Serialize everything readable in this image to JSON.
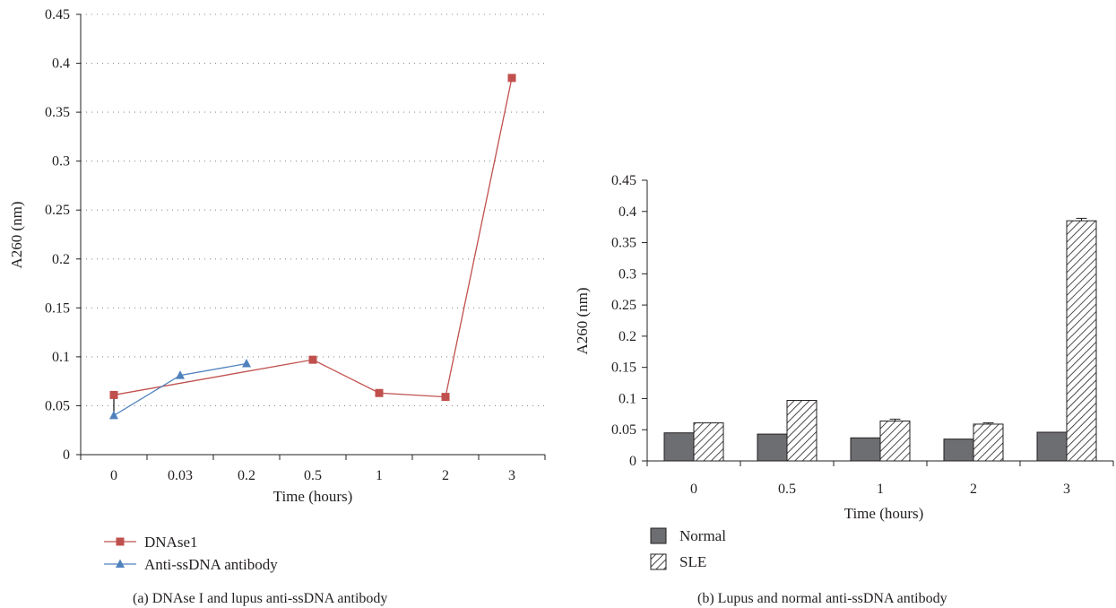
{
  "chart_data": [
    {
      "type": "line",
      "panel": "a",
      "caption": "(a)  DNAse I and lupus anti-ssDNA antibody",
      "title": "",
      "xlabel": "Time (hours)",
      "ylabel": "A260 (nm)",
      "ylim": [
        0,
        0.45
      ],
      "yticks": [
        "0",
        "0.05",
        "0.1",
        "0.15",
        "0.2",
        "0.25",
        "0.3",
        "0.35",
        "0.4",
        "0.45"
      ],
      "categories": [
        "0",
        "0.03",
        "0.2",
        "0.5",
        "1",
        "2",
        "3"
      ],
      "grid": "horizontal dotted",
      "legend_position": "bottom-left",
      "series": [
        {
          "name": "DNAse1",
          "color": "#c0504d",
          "marker": "square",
          "points": [
            {
              "x": "0",
              "y": 0.061
            },
            {
              "x": "0.5",
              "y": 0.097
            },
            {
              "x": "1",
              "y": 0.063
            },
            {
              "x": "2",
              "y": 0.059
            },
            {
              "x": "3",
              "y": 0.385
            }
          ]
        },
        {
          "name": "Anti-ssDNA antibody",
          "color": "#4f81bd",
          "marker": "triangle",
          "points": [
            {
              "x": "0",
              "y": 0.04
            },
            {
              "x": "0.03",
              "y": 0.081
            },
            {
              "x": "0.2",
              "y": 0.093
            }
          ]
        }
      ]
    },
    {
      "type": "bar",
      "panel": "b",
      "caption": "(b)  Lupus and normal anti-ssDNA antibody",
      "title": "",
      "xlabel": "Time (hours)",
      "ylabel": "A260 (nm)",
      "ylim": [
        0,
        0.45
      ],
      "yticks": [
        "0",
        "0.05",
        "0.1",
        "0.15",
        "0.2",
        "0.25",
        "0.3",
        "0.35",
        "0.4",
        "0.45"
      ],
      "categories": [
        "0",
        "0.5",
        "1",
        "2",
        "3"
      ],
      "grid": "none",
      "legend_position": "bottom-left",
      "series": [
        {
          "name": "Normal",
          "color": "#6d6e71",
          "fill": "solid",
          "values": [
            0.045,
            0.043,
            0.037,
            0.035,
            0.046
          ],
          "errors": [
            0,
            0,
            0,
            0,
            0
          ]
        },
        {
          "name": "SLE",
          "color": "#231f20",
          "fill": "hatched",
          "values": [
            0.061,
            0.097,
            0.064,
            0.059,
            0.385
          ],
          "errors": [
            0,
            0,
            0.003,
            0.002,
            0.004
          ]
        }
      ]
    }
  ]
}
